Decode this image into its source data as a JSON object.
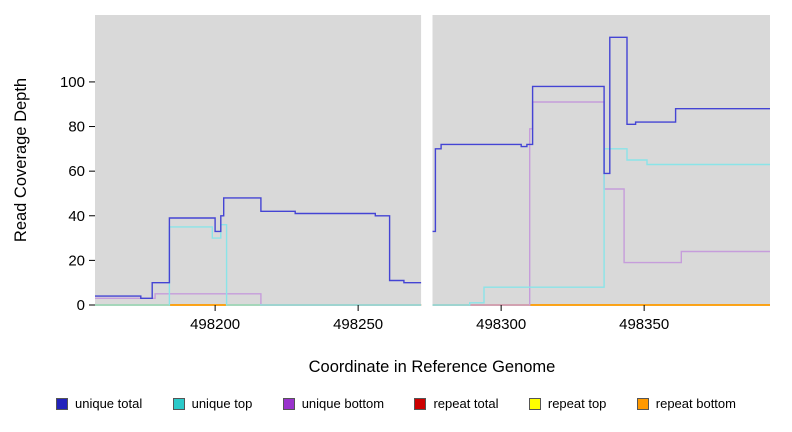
{
  "chart_data": {
    "type": "line",
    "title": "",
    "xlabel": "Coordinate in Reference Genome",
    "ylabel": "Read Coverage Depth",
    "xlim": [
      498158,
      498394
    ],
    "ylim": [
      0,
      130
    ],
    "xticks": [
      498200,
      498250,
      498300,
      498350
    ],
    "yticks": [
      0,
      20,
      40,
      60,
      80,
      100
    ],
    "panel_color": "#d9d9d9",
    "gap_region": [
      498272,
      498276
    ],
    "grid": false,
    "legend_position": "bottom",
    "series": [
      {
        "name": "repeat total",
        "color": "#cc2222",
        "legend_color": "#cc0000",
        "segments": [
          [
            [
              498158,
              0
            ],
            [
              498272,
              0
            ]
          ],
          [
            [
              498276,
              0
            ],
            [
              498394,
              0
            ]
          ]
        ]
      },
      {
        "name": "repeat top",
        "color": "#ffff44",
        "legend_color": "#ffff00",
        "segments": [
          [
            [
              498158,
              0
            ],
            [
              498272,
              0
            ]
          ],
          [
            [
              498276,
              0
            ],
            [
              498394,
              0
            ]
          ]
        ]
      },
      {
        "name": "repeat bottom",
        "color": "#ff9900",
        "legend_color": "#ff9900",
        "segments": [
          [
            [
              498158,
              0
            ],
            [
              498272,
              0
            ]
          ],
          [
            [
              498276,
              0
            ],
            [
              498394,
              0
            ]
          ]
        ]
      },
      {
        "name": "unique bottom",
        "color": "#c69ddb",
        "legend_color": "#9933cc",
        "segments": [
          [
            [
              498158,
              3
            ],
            [
              498179,
              3
            ],
            [
              498179,
              5
            ],
            [
              498216,
              5
            ],
            [
              498216,
              0
            ],
            [
              498272,
              0
            ]
          ],
          [
            [
              498276,
              0
            ],
            [
              498310,
              0
            ],
            [
              498310,
              79
            ],
            [
              498311,
              79
            ],
            [
              498311,
              91
            ],
            [
              498336,
              91
            ],
            [
              498336,
              52
            ],
            [
              498343,
              52
            ],
            [
              498343,
              19
            ],
            [
              498363,
              19
            ],
            [
              498363,
              24
            ],
            [
              498394,
              24
            ]
          ]
        ]
      },
      {
        "name": "unique top",
        "color": "#8ae4e8",
        "legend_color": "#2bc9c9",
        "segments": [
          [
            [
              498158,
              0
            ],
            [
              498184,
              0
            ],
            [
              498184,
              35
            ],
            [
              498199,
              35
            ],
            [
              498199,
              30
            ],
            [
              498202,
              30
            ],
            [
              498202,
              36
            ],
            [
              498204,
              36
            ],
            [
              498204,
              0
            ],
            [
              498272,
              0
            ]
          ],
          [
            [
              498276,
              0
            ],
            [
              498289,
              0
            ],
            [
              498289,
              1
            ],
            [
              498294,
              1
            ],
            [
              498294,
              8
            ],
            [
              498336,
              8
            ],
            [
              498336,
              70
            ],
            [
              498344,
              70
            ],
            [
              498344,
              65
            ],
            [
              498351,
              65
            ],
            [
              498351,
              63
            ],
            [
              498394,
              63
            ]
          ]
        ]
      },
      {
        "name": "unique total",
        "color": "#4444d4",
        "legend_color": "#2222bb",
        "segments": [
          [
            [
              498158,
              4
            ],
            [
              498174,
              4
            ],
            [
              498174,
              3
            ],
            [
              498178,
              3
            ],
            [
              498178,
              10
            ],
            [
              498184,
              10
            ],
            [
              498184,
              39
            ],
            [
              498200,
              39
            ],
            [
              498200,
              33
            ],
            [
              498202,
              33
            ],
            [
              498202,
              40
            ],
            [
              498203,
              40
            ],
            [
              498203,
              48
            ],
            [
              498216,
              48
            ],
            [
              498216,
              42
            ],
            [
              498228,
              42
            ],
            [
              498228,
              41
            ],
            [
              498256,
              41
            ],
            [
              498256,
              40
            ],
            [
              498261,
              40
            ],
            [
              498261,
              11
            ],
            [
              498266,
              11
            ],
            [
              498266,
              10
            ],
            [
              498272,
              10
            ]
          ],
          [
            [
              498276,
              33
            ],
            [
              498277,
              33
            ],
            [
              498277,
              70
            ],
            [
              498279,
              70
            ],
            [
              498279,
              72
            ],
            [
              498307,
              72
            ],
            [
              498307,
              71
            ],
            [
              498309,
              71
            ],
            [
              498309,
              72
            ],
            [
              498311,
              72
            ],
            [
              498311,
              98
            ],
            [
              498336,
              98
            ],
            [
              498336,
              59
            ],
            [
              498338,
              59
            ],
            [
              498338,
              120
            ],
            [
              498344,
              120
            ],
            [
              498344,
              81
            ],
            [
              498347,
              81
            ],
            [
              498347,
              82
            ],
            [
              498361,
              82
            ],
            [
              498361,
              88
            ],
            [
              498394,
              88
            ]
          ]
        ]
      }
    ],
    "legend_order": [
      "unique total",
      "unique top",
      "unique bottom",
      "repeat total",
      "repeat top",
      "repeat bottom"
    ]
  }
}
